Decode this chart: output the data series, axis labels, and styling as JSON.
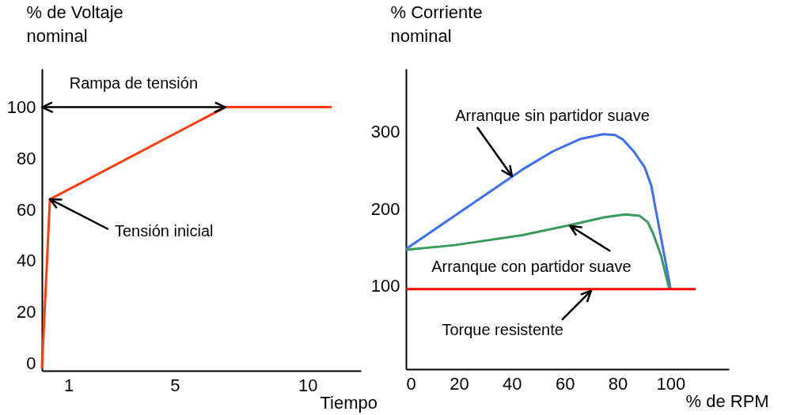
{
  "chart_data": [
    {
      "type": "line",
      "xlabel": "Tiempo",
      "ylabel": "% de Voltaje nominal",
      "xlim": [
        0,
        12
      ],
      "xticks": [
        1,
        5,
        10
      ],
      "ylim": [
        -3,
        115
      ],
      "yticks": [
        0,
        20,
        40,
        60,
        80,
        100
      ],
      "series": [
        {
          "color": "#ff3d0d",
          "x": [
            0,
            0.3,
            6.9,
            10.9
          ],
          "values": [
            -2,
            64,
            100,
            100
          ]
        }
      ],
      "annotations": [
        {
          "text": "Rampa de tensión",
          "x": 6.9,
          "y": 100
        },
        "Tensión inicial"
      ]
    },
    {
      "type": "line",
      "xlabel": "% de RPM",
      "ylabel": "% Corriente nominal",
      "xlim": [
        0,
        122
      ],
      "xticks": [
        0,
        20,
        40,
        60,
        80,
        100
      ],
      "ylim": [
        -8,
        382
      ],
      "yticks": [
        100,
        200,
        300
      ],
      "series": [
        {
          "color": "#3d6ef5",
          "x": [
            0,
            43.9,
            55.6,
            66,
            74.5,
            79,
            82,
            86,
            90.2,
            92.7,
            100
          ],
          "values": [
            148,
            251,
            275,
            291,
            297,
            296,
            290,
            275,
            254,
            230,
            96
          ]
        },
        {
          "color": "#3a9a5e",
          "x": [
            0,
            18.4,
            43.9,
            62,
            74.8,
            82.8,
            88.3,
            91.3,
            93.4,
            96.4,
            99.5
          ],
          "values": [
            147,
            153,
            166,
            179,
            189,
            193,
            191,
            183,
            168,
            139,
            96
          ]
        },
        {
          "color": "#ff0000",
          "x": [
            0,
            109.4
          ],
          "values": [
            96,
            96
          ]
        }
      ],
      "annotations": [
        "Arranque sin partidor suave",
        {
          "text": "Arranque con partidor suave",
          "x": 62,
          "y": 178
        },
        {
          "text": "Torque resistente",
          "x": 70,
          "y": 94
        }
      ]
    }
  ]
}
